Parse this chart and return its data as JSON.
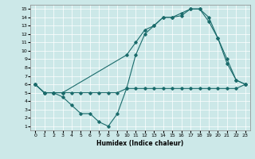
{
  "xlabel": "Humidex (Indice chaleur)",
  "bg_color": "#cce8e8",
  "line_color": "#1a6b6b",
  "xlim": [
    -0.5,
    23.5
  ],
  "ylim": [
    0.5,
    15.5
  ],
  "xticks": [
    0,
    1,
    2,
    3,
    4,
    5,
    6,
    7,
    8,
    9,
    10,
    11,
    12,
    13,
    14,
    15,
    16,
    17,
    18,
    19,
    20,
    21,
    22,
    23
  ],
  "yticks": [
    1,
    2,
    3,
    4,
    5,
    6,
    7,
    8,
    9,
    10,
    11,
    12,
    13,
    14,
    15
  ],
  "line_upper": {
    "x": [
      0,
      1,
      2,
      3,
      10,
      11,
      12,
      13,
      14,
      15,
      16,
      17,
      18,
      19,
      20,
      21,
      22,
      23
    ],
    "y": [
      6,
      5,
      5,
      5,
      9.5,
      11,
      12.5,
      13,
      14,
      14,
      14.2,
      15,
      15,
      13.5,
      11.5,
      8.5,
      6.5,
      6
    ]
  },
  "line_flat": {
    "x": [
      0,
      1,
      2,
      3,
      4,
      5,
      6,
      7,
      8,
      9,
      10,
      11,
      12,
      13,
      14,
      15,
      16,
      17,
      18,
      19,
      20,
      21,
      22,
      23
    ],
    "y": [
      6,
      5,
      5,
      5,
      5,
      5,
      5,
      5,
      5,
      5,
      5.5,
      5.5,
      5.5,
      5.5,
      5.5,
      5.5,
      5.5,
      5.5,
      5.5,
      5.5,
      5.5,
      5.5,
      5.5,
      6
    ]
  },
  "line_dip": {
    "x": [
      0,
      1,
      2,
      3,
      4,
      5,
      6,
      7,
      8,
      9,
      10,
      11,
      12,
      13,
      14,
      15,
      16,
      17,
      18,
      19,
      20,
      21,
      22,
      23
    ],
    "y": [
      6,
      5,
      5,
      4.5,
      3.5,
      2.5,
      2.5,
      1.5,
      1,
      2.5,
      5.5,
      9.5,
      12,
      13,
      14,
      14,
      14.5,
      15,
      15,
      14,
      11.5,
      9,
      6.5,
      6
    ]
  }
}
